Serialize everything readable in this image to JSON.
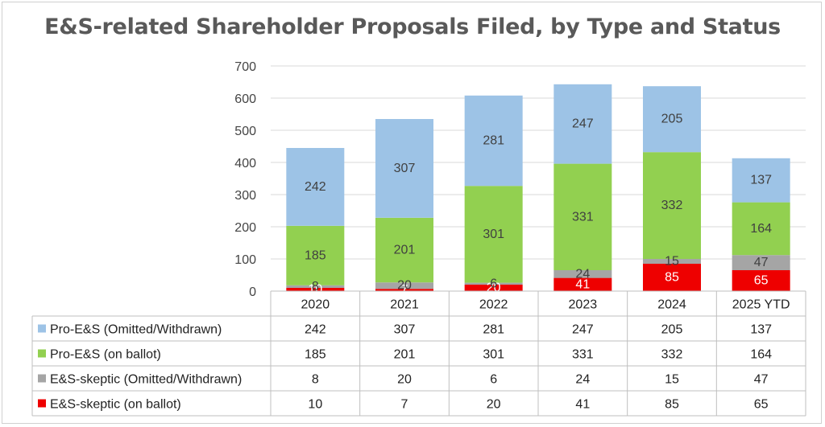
{
  "chart_data": {
    "type": "bar",
    "stacked": true,
    "title": "E&S-related Shareholder Proposals Filed, by Type and Status",
    "categories": [
      "2020",
      "2021",
      "2022",
      "2023",
      "2024",
      "2025 YTD"
    ],
    "ylim": [
      0,
      700
    ],
    "yticks": [
      0,
      100,
      200,
      300,
      400,
      500,
      600,
      700
    ],
    "grid": true,
    "legend": "data table below chart",
    "series": [
      {
        "name": "E&S-skeptic (on ballot)",
        "color": "#ee0000",
        "label_color": "#ffffff",
        "values": [
          10,
          7,
          20,
          41,
          85,
          65
        ]
      },
      {
        "name": "E&S-skeptic (Omitted/Withdrawn)",
        "color": "#a5a5a5",
        "label_color": "#404040",
        "values": [
          8,
          20,
          6,
          24,
          15,
          47
        ]
      },
      {
        "name": "Pro-E&S (on ballot)",
        "color": "#92d050",
        "label_color": "#404040",
        "values": [
          185,
          201,
          301,
          331,
          332,
          164
        ]
      },
      {
        "name": "Pro-E&S (Omitted/Withdrawn)",
        "color": "#9dc3e6",
        "label_color": "#404040",
        "values": [
          242,
          307,
          281,
          247,
          205,
          137
        ]
      }
    ],
    "table_row_order": [
      3,
      2,
      1,
      0
    ]
  }
}
